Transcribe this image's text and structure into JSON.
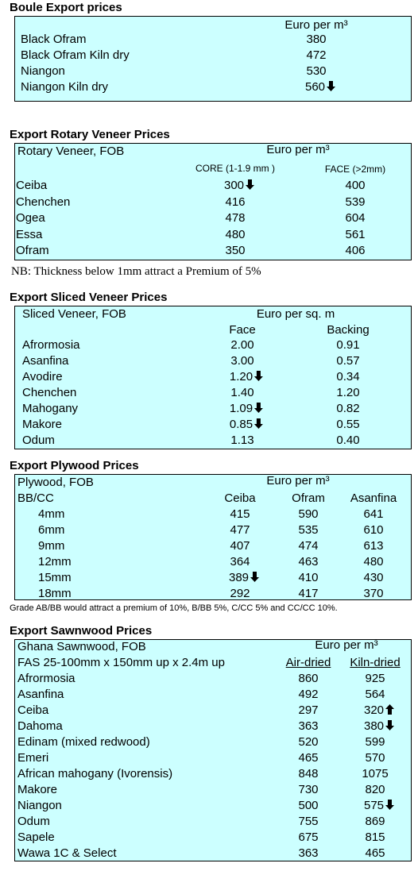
{
  "sections": [
    {
      "title": "Boule Export prices",
      "headers": [
        "Euro per m³"
      ],
      "rows": [
        {
          "name": "Black Ofram",
          "cells": [
            "380"
          ]
        },
        {
          "name": "Black Ofram  Kiln dry",
          "cells": [
            "472"
          ]
        },
        {
          "name": "Niangon",
          "cells": [
            "530"
          ]
        },
        {
          "name": "Niangon Kiln dry",
          "cells": [
            {
              "text": "560",
              "arrow": "down"
            }
          ]
        }
      ]
    },
    {
      "title": "Export Rotary Veneer Prices",
      "headers": [
        "Rotary Veneer,  FOB",
        "Euro  per m³",
        "CORE (1-1.9 mm )",
        "FACE (>2mm)"
      ],
      "rows": [
        {
          "name": "Ceiba",
          "cells": [
            {
              "text": "300",
              "arrow": "down"
            },
            "400"
          ]
        },
        {
          "name": "Chenchen",
          "cells": [
            "416",
            "539"
          ]
        },
        {
          "name": "Ogea",
          "cells": [
            "478",
            "604"
          ]
        },
        {
          "name": "Essa",
          "cells": [
            "480",
            "561"
          ]
        },
        {
          "name": "Ofram",
          "cells": [
            "350",
            "406"
          ]
        }
      ],
      "note": "NB: Thickness below 1mm attract a Premium of 5%"
    },
    {
      "title": "Export Sliced Veneer Prices",
      "headers": [
        "Sliced Veneer, FOB",
        "Euro per sq. m",
        "Face",
        "Backing"
      ],
      "rows": [
        {
          "name": "Afrormosia",
          "cells": [
            "2.00",
            "0.91"
          ]
        },
        {
          "name": "Asanfina",
          "cells": [
            "3.00",
            "0.57"
          ]
        },
        {
          "name": "Avodire",
          "cells": [
            {
              "text": "1.20",
              "arrow": "down"
            },
            "0.34"
          ]
        },
        {
          "name": "Chenchen",
          "cells": [
            "1.40",
            "1.20"
          ]
        },
        {
          "name": "Mahogany",
          "cells": [
            {
              "text": "1.09",
              "arrow": "down"
            },
            "0.82"
          ]
        },
        {
          "name": "Makore",
          "cells": [
            {
              "text": "0.85",
              "arrow": "down"
            },
            "0.55"
          ]
        },
        {
          "name": "Odum",
          "cells": [
            "1.13",
            "0.40"
          ]
        }
      ]
    },
    {
      "title": "Export Plywood Prices",
      "headers": [
        "Plywood, FOB",
        "Euro per m³",
        "BB/CC",
        "Ceiba",
        "Ofram",
        "Asanfina"
      ],
      "rows": [
        {
          "name": "4mm",
          "cells": [
            "415",
            "590",
            "641"
          ]
        },
        {
          "name": "6mm",
          "cells": [
            "477",
            "535",
            "610"
          ]
        },
        {
          "name": "9mm",
          "cells": [
            "407",
            "474",
            "613"
          ]
        },
        {
          "name": "12mm",
          "cells": [
            "364",
            "463",
            "480"
          ]
        },
        {
          "name": "15mm",
          "cells": [
            {
              "text": "389",
              "arrow": "down"
            },
            "410",
            "430"
          ]
        },
        {
          "name": "18mm",
          "cells": [
            "292",
            "417",
            "370"
          ]
        }
      ],
      "note": "Grade AB/BB would attract a premium of 10%, B/BB 5%, C/CC 5% and CC/CC 10%."
    },
    {
      "title": "Export Sawnwood Prices",
      "headers": [
        "Ghana Sawnwood, FOB",
        "Euro per m³",
        "FAS 25-100mm x 150mm up x 2.4m up",
        "Air-dried",
        "Kiln-dried"
      ],
      "rows": [
        {
          "name": "Afrormosia",
          "cells": [
            "860",
            "925"
          ]
        },
        {
          "name": "Asanfina",
          "cells": [
            "492",
            "564"
          ]
        },
        {
          "name": "Ceiba",
          "cells": [
            "297",
            {
              "text": "320",
              "arrow": "up"
            }
          ]
        },
        {
          "name": "Dahoma",
          "cells": [
            "363",
            {
              "text": "380",
              "arrow": "down"
            }
          ]
        },
        {
          "name": "Edinam (mixed redwood)",
          "cells": [
            "520",
            "599"
          ]
        },
        {
          "name": "Emeri",
          "cells": [
            "465",
            "570"
          ]
        },
        {
          "name": "African mahogany (Ivorensis)",
          "cells": [
            "848",
            "1075"
          ]
        },
        {
          "name": "Makore",
          "cells": [
            "730",
            "820"
          ]
        },
        {
          "name": "Niangon",
          "cells": [
            "500",
            {
              "text": "575",
              "arrow": "down"
            }
          ]
        },
        {
          "name": "Odum",
          "cells": [
            "755",
            "869"
          ]
        },
        {
          "name": "Sapele",
          "cells": [
            "675",
            "815"
          ]
        },
        {
          "name": "Wawa 1C & Select",
          "cells": [
            "363",
            "465"
          ]
        }
      ]
    }
  ]
}
